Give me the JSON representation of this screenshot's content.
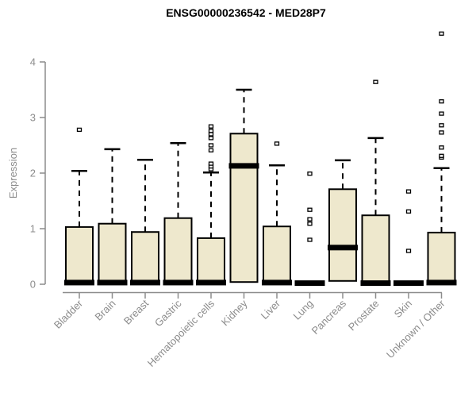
{
  "chart_data": {
    "type": "boxplot",
    "title": "ENSG00000236542 - MED28P7",
    "xlabel": "",
    "ylabel": "Expression",
    "ylim": [
      0,
      4.6
    ],
    "yticks": [
      0,
      1,
      2,
      3,
      4
    ],
    "grid": false,
    "legend": null,
    "categories": [
      "Bladder",
      "Brain",
      "Breast",
      "Gastric",
      "Hematopoietic cells",
      "Kidney",
      "Liver",
      "Lung",
      "Pancreas",
      "Prostate",
      "Skin",
      "Unknown / Other"
    ],
    "series": [
      {
        "name": "Bladder",
        "q1": 0,
        "median": 0.03,
        "q3": 1.03,
        "whisker_low": 0,
        "whisker_high": 2.04,
        "outliers": [
          2.78
        ]
      },
      {
        "name": "Brain",
        "q1": 0,
        "median": 0.03,
        "q3": 1.09,
        "whisker_low": 0,
        "whisker_high": 2.43,
        "outliers": []
      },
      {
        "name": "Breast",
        "q1": 0,
        "median": 0.03,
        "q3": 0.94,
        "whisker_low": 0,
        "whisker_high": 2.24,
        "outliers": []
      },
      {
        "name": "Gastric",
        "q1": 0,
        "median": 0.03,
        "q3": 1.19,
        "whisker_low": 0,
        "whisker_high": 2.54,
        "outliers": []
      },
      {
        "name": "Hematopoietic cells",
        "q1": 0,
        "median": 0.03,
        "q3": 0.83,
        "whisker_low": 0,
        "whisker_high": 2.01,
        "outliers": [
          2.07,
          2.12,
          2.17,
          2.41,
          2.5,
          2.63,
          2.7,
          2.76,
          2.84
        ]
      },
      {
        "name": "Kidney",
        "q1": 0.04,
        "median": 2.13,
        "q3": 2.71,
        "whisker_low": 0.04,
        "whisker_high": 3.5,
        "outliers": []
      },
      {
        "name": "Liver",
        "q1": 0,
        "median": 0.03,
        "q3": 1.04,
        "whisker_low": 0,
        "whisker_high": 2.14,
        "outliers": [
          2.53
        ]
      },
      {
        "name": "Lung",
        "q1": 0,
        "median": 0.02,
        "q3": 0.02,
        "whisker_low": 0,
        "whisker_high": 0.02,
        "outliers": [
          0.8,
          1.09,
          1.17,
          1.34,
          1.99
        ]
      },
      {
        "name": "Pancreas",
        "q1": 0.06,
        "median": 0.66,
        "q3": 1.71,
        "whisker_low": 0.06,
        "whisker_high": 2.23,
        "outliers": []
      },
      {
        "name": "Prostate",
        "q1": 0,
        "median": 0.02,
        "q3": 1.24,
        "whisker_low": 0,
        "whisker_high": 2.63,
        "outliers": [
          3.64
        ]
      },
      {
        "name": "Skin",
        "q1": 0,
        "median": 0.02,
        "q3": 0.02,
        "whisker_low": 0,
        "whisker_high": 0.02,
        "outliers": [
          0.6,
          1.31,
          1.67
        ]
      },
      {
        "name": "Unknown / Other",
        "q1": 0,
        "median": 0.03,
        "q3": 0.93,
        "whisker_low": 0,
        "whisker_high": 2.09,
        "outliers": [
          2.28,
          2.31,
          2.46,
          2.73,
          2.86,
          3.07,
          3.29,
          4.51
        ]
      }
    ],
    "colors": {
      "box_fill": "#EEE8CD",
      "box_stroke": "#000000",
      "median": "#000000",
      "whisker": "#000000",
      "outlier_stroke": "#000000",
      "outlier_fill": "#ffffff",
      "axis": "#8c8c8c",
      "tick_label": "#8c8c8c",
      "title": "#000000",
      "background": "#ffffff"
    }
  }
}
